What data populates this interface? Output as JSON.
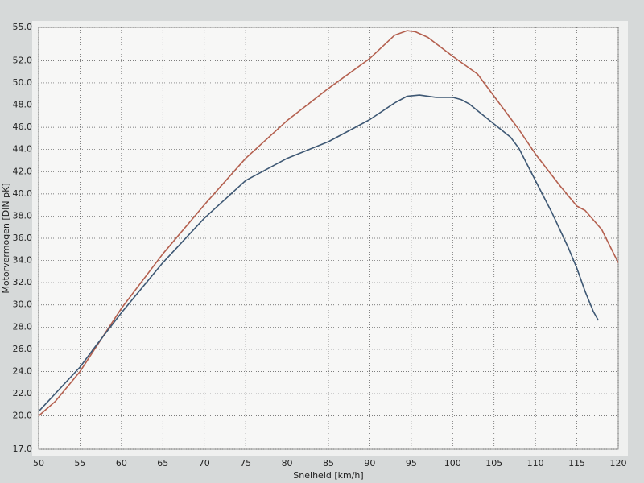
{
  "chart_data": {
    "type": "line",
    "x_label": "Snelheid [km/h]",
    "y_label": "Motorvermogen [DIN pK]",
    "xlim": [
      50,
      120
    ],
    "xticks": [
      50,
      55,
      60,
      65,
      70,
      75,
      80,
      85,
      90,
      95,
      100,
      105,
      110,
      115,
      120
    ],
    "ylim": [
      17,
      55
    ],
    "yticks": [
      {
        "value": 17,
        "label": "17.0"
      },
      {
        "value": 20,
        "label": "20.0"
      },
      {
        "value": 22,
        "label": "22.0"
      },
      {
        "value": 24,
        "label": "24.0"
      },
      {
        "value": 26,
        "label": "26.0"
      },
      {
        "value": 28,
        "label": "28.0"
      },
      {
        "value": 30,
        "label": "30.0"
      },
      {
        "value": 32,
        "label": "32.0"
      },
      {
        "value": 34,
        "label": "34.0"
      },
      {
        "value": 36,
        "label": "36.0"
      },
      {
        "value": 38,
        "label": "38.0"
      },
      {
        "value": 40,
        "label": "40.0"
      },
      {
        "value": 42,
        "label": "42.0"
      },
      {
        "value": 44,
        "label": "44.0"
      },
      {
        "value": 46,
        "label": "46.0"
      },
      {
        "value": 48,
        "label": "48.0"
      },
      {
        "value": 50,
        "label": "50.0"
      },
      {
        "value": 52,
        "label": "52.0"
      },
      {
        "value": 55,
        "label": "55.0"
      }
    ],
    "grid": true,
    "series": [
      {
        "color": "#b4604f",
        "x": [
          50,
          52,
          55,
          60,
          65,
          70,
          75,
          80,
          85,
          90,
          93,
          94.5,
          95.5,
          97,
          100,
          103,
          105,
          108,
          110,
          113,
          115,
          116,
          118,
          120
        ],
        "values": [
          20.0,
          21.3,
          24.0,
          29.7,
          34.6,
          39.0,
          43.2,
          46.6,
          49.5,
          52.2,
          54.3,
          54.7,
          54.6,
          54.1,
          52.4,
          50.8,
          48.8,
          45.8,
          43.6,
          40.7,
          38.9,
          38.5,
          36.8,
          33.8
        ]
      },
      {
        "color": "#3e5874",
        "x": [
          50,
          52,
          55,
          57,
          60,
          65,
          70,
          75,
          80,
          85,
          90,
          93,
          94.5,
          96,
          98,
          100,
          101,
          102,
          104,
          105,
          107,
          108,
          110,
          112,
          114,
          115,
          116,
          117,
          117.6
        ],
        "values": [
          20.4,
          22.0,
          24.4,
          26.4,
          29.3,
          33.8,
          37.8,
          41.2,
          43.2,
          44.7,
          46.7,
          48.2,
          48.8,
          48.9,
          48.7,
          48.7,
          48.5,
          48.1,
          46.9,
          46.3,
          45.1,
          44.1,
          41.2,
          38.3,
          35.1,
          33.3,
          31.2,
          29.4,
          28.6
        ]
      }
    ]
  }
}
